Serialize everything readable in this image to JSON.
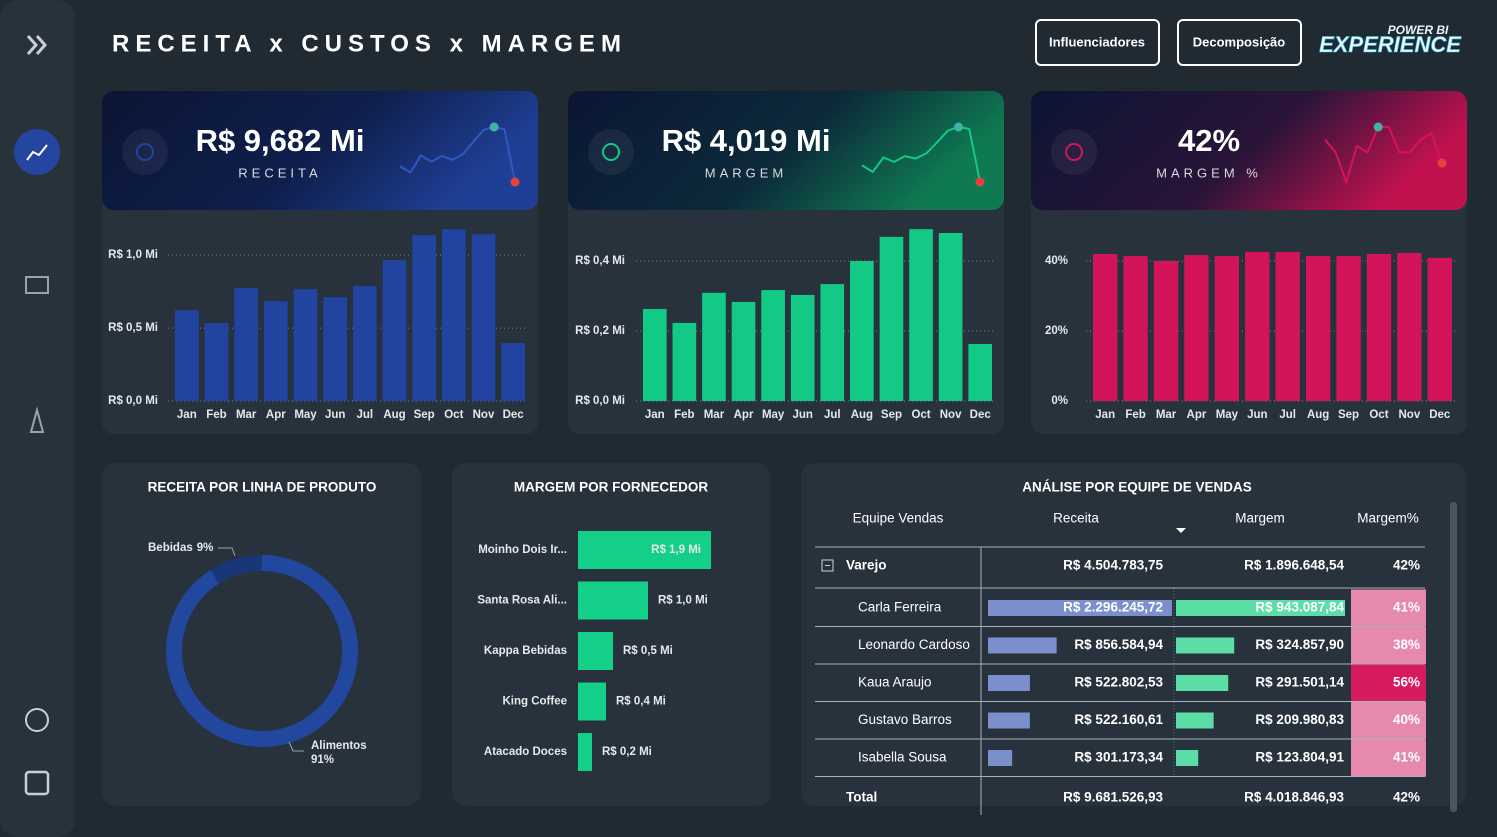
{
  "header": {
    "title": "RECEITA x CUSTOS x MARGEM",
    "buttons": [
      "Influenciadores",
      "Decomposição"
    ],
    "logo": [
      "POWER BI",
      "EXPERIENCE"
    ]
  },
  "kpis": [
    {
      "value": "R$ 9,682 Mi",
      "label": "RECEITA"
    },
    {
      "value": "R$ 4,019 Mi",
      "label": "MARGEM"
    },
    {
      "value": "42%",
      "label": "MARGEM %"
    }
  ],
  "chart_data": [
    {
      "type": "bar",
      "categories": [
        "Jan",
        "Feb",
        "Mar",
        "Apr",
        "May",
        "Jun",
        "Jul",
        "Aug",
        "Sep",
        "Oct",
        "Nov",
        "Dec"
      ],
      "values": [
        0.623,
        0.534,
        0.774,
        0.685,
        0.767,
        0.712,
        0.788,
        0.966,
        1.137,
        1.178,
        1.144,
        0.397
      ],
      "color": "#2144a0",
      "ylim": [
        0,
        1.2
      ],
      "yticks": [
        {
          "value": 0,
          "label": "R$ 0,0 Mi"
        },
        {
          "value": 0.5,
          "label": "R$ 0,5 Mi"
        },
        {
          "value": 1.0,
          "label": "R$ 1,0 Mi"
        }
      ],
      "grid": true
    },
    {
      "type": "bar",
      "categories": [
        "Jan",
        "Feb",
        "Mar",
        "Apr",
        "May",
        "Jun",
        "Jul",
        "Aug",
        "Sep",
        "Oct",
        "Nov",
        "Dec"
      ],
      "values": [
        0.263,
        0.223,
        0.309,
        0.283,
        0.317,
        0.303,
        0.334,
        0.4,
        0.469,
        0.491,
        0.48,
        0.163
      ],
      "color": "#12c986",
      "ylim": [
        0,
        0.5
      ],
      "yticks": [
        {
          "value": 0,
          "label": "R$ 0,0 Mi"
        },
        {
          "value": 0.2,
          "label": "R$ 0,2 Mi"
        },
        {
          "value": 0.4,
          "label": "R$ 0,4 Mi"
        }
      ],
      "grid": true
    },
    {
      "type": "bar",
      "categories": [
        "Jan",
        "Feb",
        "Mar",
        "Apr",
        "May",
        "Jun",
        "Jul",
        "Aug",
        "Sep",
        "Oct",
        "Nov",
        "Dec"
      ],
      "values": [
        42,
        41.4,
        40,
        41.7,
        41.4,
        42.6,
        42.6,
        41.4,
        41.4,
        42,
        42.3,
        40.9
      ],
      "color": "#d4145a",
      "ylim": [
        0,
        50
      ],
      "yticks": [
        {
          "value": 0,
          "label": "0%"
        },
        {
          "value": 20,
          "label": "20%"
        },
        {
          "value": 40,
          "label": "40%"
        }
      ],
      "grid": true
    },
    {
      "type": "donut",
      "title": "RECEITA POR LINHA DE PRODUTO",
      "categories": [
        "Alimentos",
        "Bebidas"
      ],
      "values": [
        91,
        9
      ],
      "value_labels": [
        "91%",
        "9%"
      ],
      "colors": [
        "#22479e",
        "#193777"
      ]
    },
    {
      "type": "hbar",
      "title": "MARGEM POR FORNECEDOR",
      "categories": [
        "Moinho Dois Ir...",
        "Santa Rosa Ali...",
        "Kappa Bebidas",
        "King Coffee",
        "Atacado Doces"
      ],
      "values": [
        1.9,
        1.0,
        0.5,
        0.4,
        0.2
      ],
      "value_labels": [
        "R$ 1,9 Mi",
        "R$ 1,0 Mi",
        "R$ 0,5 Mi",
        "R$ 0,4 Mi",
        "R$ 0,2 Mi"
      ],
      "color": "#13cf87"
    }
  ],
  "table": {
    "title": "ANÁLISE POR EQUIPE DE VENDAS",
    "columns": [
      "Equipe Vendas",
      "Receita",
      "Margem",
      "Margem%"
    ],
    "group": [
      "Varejo",
      {
        "value": 4504783.75,
        "label": "R$ 4.504.783,75"
      },
      {
        "value": 1896648.54,
        "label": "R$ 1.896.648,54"
      },
      {
        "value": 42,
        "label": "42%"
      }
    ],
    "rows": [
      [
        "Carla Ferreira",
        {
          "value": 2296245.72,
          "label": "R$ 2.296.245,72"
        },
        {
          "value": 943087.84,
          "label": "R$ 943.087,84"
        },
        {
          "value": 41,
          "label": "41%"
        }
      ],
      [
        "Leonardo Cardoso",
        {
          "value": 856584.94,
          "label": "R$ 856.584,94"
        },
        {
          "value": 324857.9,
          "label": "R$ 324.857,90"
        },
        {
          "value": 38,
          "label": "38%"
        }
      ],
      [
        "Kaua Araujo",
        {
          "value": 522802.53,
          "label": "R$ 522.802,53"
        },
        {
          "value": 291501.14,
          "label": "R$ 291.501,14"
        },
        {
          "value": 56,
          "label": "56%"
        }
      ],
      [
        "Gustavo Barros",
        {
          "value": 522160.61,
          "label": "R$ 522.160,61"
        },
        {
          "value": 209980.83,
          "label": "R$ 209.980,83"
        },
        {
          "value": 40,
          "label": "40%"
        }
      ],
      [
        "Isabella Sousa",
        {
          "value": 301173.34,
          "label": "R$ 301.173,34"
        },
        {
          "value": 123804.91,
          "label": "R$ 123.804,91"
        },
        {
          "value": 41,
          "label": "41%"
        }
      ]
    ],
    "total": [
      "Total",
      {
        "value": 9681526.93,
        "label": "R$ 9.681.526,93"
      },
      {
        "value": 4018846.93,
        "label": "R$ 4.018.846,93"
      },
      {
        "value": 42,
        "label": "42%"
      }
    ]
  }
}
